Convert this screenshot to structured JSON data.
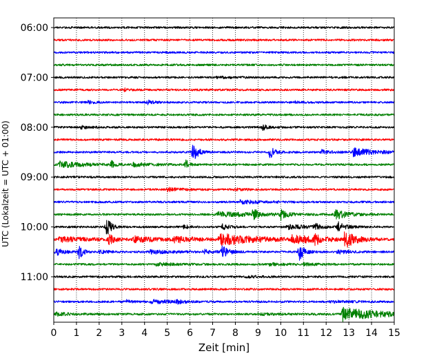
{
  "chart_data": {
    "type": "line",
    "title": "",
    "xlabel": "Zeit  [min]",
    "ylabel": "UTC (Lokalzeit = UTC + 01:00)",
    "xlim": [
      0,
      15
    ],
    "x_ticks": [
      0,
      1,
      2,
      3,
      4,
      5,
      6,
      7,
      8,
      9,
      10,
      11,
      12,
      13,
      14,
      15
    ],
    "x_tick_labels": [
      "0",
      "1",
      "2",
      "3",
      "4",
      "5",
      "6",
      "7",
      "8",
      "9",
      "10",
      "11",
      "12",
      "13",
      "14",
      "15"
    ],
    "y_tick_labels": [
      "06:00",
      "07:00",
      "08:00",
      "09:00",
      "10:00",
      "11:00"
    ],
    "grid": "vertical dotted",
    "trace_colors": [
      "#000000",
      "#ff0000",
      "#0000ff",
      "#008000"
    ],
    "start_time": "06:00",
    "trace_interval_min": 15,
    "traces": [
      {
        "label": "06:00",
        "color": "#000000",
        "events": []
      },
      {
        "label": "06:15",
        "color": "#ff0000",
        "events": []
      },
      {
        "label": "06:30",
        "color": "#0000ff",
        "events": []
      },
      {
        "label": "06:45",
        "color": "#008000",
        "events": []
      },
      {
        "label": "07:00",
        "color": "#000000",
        "events": [
          {
            "t": 7.2,
            "amp": 0.15,
            "dur": 0.8
          }
        ]
      },
      {
        "label": "07:15",
        "color": "#ff0000",
        "events": [
          {
            "t": 3.1,
            "amp": 0.25,
            "dur": 0.3
          }
        ]
      },
      {
        "label": "07:30",
        "color": "#0000ff",
        "events": [
          {
            "t": 1.5,
            "amp": 0.3,
            "dur": 0.3
          },
          {
            "t": 4.1,
            "amp": 0.35,
            "dur": 0.4
          },
          {
            "t": 10.6,
            "amp": 0.2,
            "dur": 0.3
          }
        ]
      },
      {
        "label": "07:45",
        "color": "#008000",
        "events": []
      },
      {
        "label": "08:00",
        "color": "#000000",
        "events": [
          {
            "t": 1.2,
            "amp": 0.25,
            "dur": 0.6
          },
          {
            "t": 9.2,
            "amp": 0.55,
            "dur": 0.3
          }
        ]
      },
      {
        "label": "08:15",
        "color": "#ff0000",
        "events": []
      },
      {
        "label": "08:30",
        "color": "#0000ff",
        "events": [
          {
            "t": 6.1,
            "amp": 2.0,
            "dur": 0.3
          },
          {
            "t": 9.5,
            "amp": 1.2,
            "dur": 0.3
          },
          {
            "t": 11.8,
            "amp": 0.35,
            "dur": 0.5
          },
          {
            "t": 13.2,
            "amp": 0.7,
            "dur": 1.3
          }
        ]
      },
      {
        "label": "08:45",
        "color": "#008000",
        "events": [
          {
            "t": 0.2,
            "amp": 0.55,
            "dur": 1.5
          },
          {
            "t": 2.55,
            "amp": 0.8,
            "dur": 0.15
          },
          {
            "t": 5.8,
            "amp": 1.2,
            "dur": 0.15
          },
          {
            "t": 3.5,
            "amp": 0.3,
            "dur": 1.2
          }
        ]
      },
      {
        "label": "09:00",
        "color": "#000000",
        "events": []
      },
      {
        "label": "09:15",
        "color": "#ff0000",
        "events": [
          {
            "t": 5.0,
            "amp": 0.3,
            "dur": 0.8
          },
          {
            "t": 8.0,
            "amp": 0.2,
            "dur": 0.6
          }
        ]
      },
      {
        "label": "09:30",
        "color": "#0000ff",
        "events": [
          {
            "t": 8.2,
            "amp": 0.3,
            "dur": 1.3
          }
        ]
      },
      {
        "label": "09:45",
        "color": "#008000",
        "events": [
          {
            "t": 7.2,
            "amp": 0.4,
            "dur": 3.0
          },
          {
            "t": 8.8,
            "amp": 1.6,
            "dur": 0.15
          },
          {
            "t": 10.0,
            "amp": 1.0,
            "dur": 0.3
          },
          {
            "t": 12.4,
            "amp": 1.0,
            "dur": 0.6
          }
        ]
      },
      {
        "label": "10:00",
        "color": "#000000",
        "events": [
          {
            "t": 2.3,
            "amp": 2.0,
            "dur": 0.25
          },
          {
            "t": 5.7,
            "amp": 0.4,
            "dur": 0.3
          },
          {
            "t": 7.4,
            "amp": 0.5,
            "dur": 0.4
          },
          {
            "t": 10.3,
            "amp": 0.35,
            "dur": 1.5
          },
          {
            "t": 11.5,
            "amp": 0.7,
            "dur": 0.2
          },
          {
            "t": 12.5,
            "amp": 0.9,
            "dur": 0.4
          }
        ]
      },
      {
        "label": "10:15",
        "color": "#ff0000",
        "events": [
          {
            "t": 0.2,
            "amp": 0.5,
            "dur": 2.0
          },
          {
            "t": 2.4,
            "amp": 1.0,
            "dur": 0.3
          },
          {
            "t": 3.5,
            "amp": 0.5,
            "dur": 1.5
          },
          {
            "t": 5.3,
            "amp": 0.6,
            "dur": 1.2
          },
          {
            "t": 7.3,
            "amp": 1.0,
            "dur": 2.5
          },
          {
            "t": 10.5,
            "amp": 0.6,
            "dur": 2.0
          },
          {
            "t": 11.5,
            "amp": 1.0,
            "dur": 0.2
          },
          {
            "t": 12.8,
            "amp": 1.6,
            "dur": 0.6
          }
        ]
      },
      {
        "label": "10:30",
        "color": "#0000ff",
        "events": [
          {
            "t": 0.1,
            "amp": 0.6,
            "dur": 0.5
          },
          {
            "t": 1.1,
            "amp": 1.6,
            "dur": 0.2
          },
          {
            "t": 2.0,
            "amp": 0.3,
            "dur": 0.5
          },
          {
            "t": 4.2,
            "amp": 0.3,
            "dur": 1.5
          },
          {
            "t": 6.6,
            "amp": 0.4,
            "dur": 0.5
          },
          {
            "t": 7.4,
            "amp": 1.0,
            "dur": 0.4
          },
          {
            "t": 10.8,
            "amp": 1.6,
            "dur": 0.3
          },
          {
            "t": 12.5,
            "amp": 0.4,
            "dur": 0.6
          }
        ]
      },
      {
        "label": "10:45",
        "color": "#008000",
        "events": [
          {
            "t": 4.5,
            "amp": 0.25,
            "dur": 1.2
          },
          {
            "t": 9.5,
            "amp": 0.2,
            "dur": 1.0
          },
          {
            "t": 11.0,
            "amp": 0.2,
            "dur": 0.6
          }
        ]
      },
      {
        "label": "11:00",
        "color": "#000000",
        "events": [
          {
            "t": 8.5,
            "amp": 0.2,
            "dur": 0.6
          }
        ]
      },
      {
        "label": "11:15",
        "color": "#ff0000",
        "events": []
      },
      {
        "label": "11:30",
        "color": "#0000ff",
        "events": [
          {
            "t": 3.2,
            "amp": 0.3,
            "dur": 0.3
          },
          {
            "t": 4.3,
            "amp": 0.4,
            "dur": 1.0
          },
          {
            "t": 5.4,
            "amp": 0.35,
            "dur": 0.4
          },
          {
            "t": 12.2,
            "amp": 0.2,
            "dur": 0.8
          }
        ]
      },
      {
        "label": "11:45",
        "color": "#008000",
        "events": [
          {
            "t": 0.1,
            "amp": 0.25,
            "dur": 1.0
          },
          {
            "t": 12.7,
            "amp": 1.2,
            "dur": 2.3
          },
          {
            "t": 9.0,
            "amp": 0.15,
            "dur": 1.5
          }
        ]
      }
    ]
  }
}
